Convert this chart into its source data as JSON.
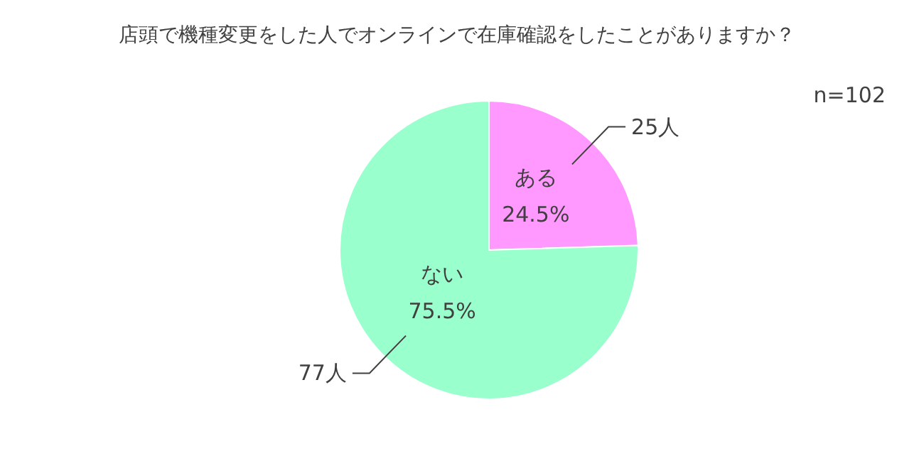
{
  "chart_data": {
    "type": "pie",
    "title": "店頭で機種変更をした人でオンラインで在庫確認をしたことがありますか？",
    "categories": [
      "ある",
      "ない"
    ],
    "values": [
      25,
      77
    ],
    "colors": [
      "#ff99ff",
      "#99ffcc"
    ],
    "value_labels": [
      "25人",
      "77人"
    ],
    "annotations": [
      "n=102",
      {
        "text": "24.5%",
        "x": "ある"
      },
      {
        "text": "75.5%",
        "x": "ない"
      }
    ],
    "legend": false
  }
}
